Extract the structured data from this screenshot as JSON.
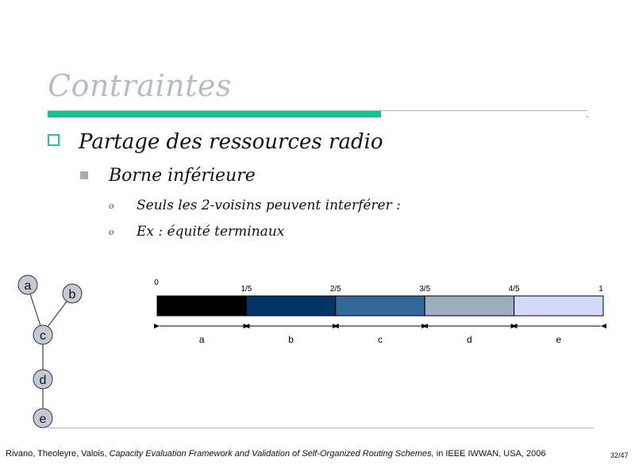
{
  "slide": {
    "title": "Contraintes",
    "bullets": {
      "level1": "Partage des ressources radio",
      "level2": "Borne inférieure",
      "level3_marker": "o",
      "level3_items": [
        "Seuls les 2-voisins peuvent interférer :",
        "Ex : équité terminaux"
      ]
    },
    "colors": {
      "title": "#b5bcc8",
      "accent_green": "#13c28f",
      "rule_gray": "#aeb7c0",
      "node_fill": "#c3cad4"
    }
  },
  "graph": {
    "nodes": [
      "a",
      "b",
      "c",
      "d",
      "e"
    ]
  },
  "bar": {
    "ticks": [
      "0",
      "1/5",
      "2/5",
      "3/5",
      "4/5",
      "1"
    ],
    "segments": [
      {
        "label": "a",
        "share": 0.2,
        "color": "#000000"
      },
      {
        "label": "b",
        "share": 0.2,
        "color": "#003366"
      },
      {
        "label": "c",
        "share": 0.2,
        "color": "#336699"
      },
      {
        "label": "d",
        "share": 0.2,
        "color": "#9fadc1"
      },
      {
        "label": "e",
        "share": 0.2,
        "color": "#d4d9f9"
      }
    ]
  },
  "footer": {
    "authors": "Rivano, Theoleyre, Valois, ",
    "paper_title": "Capacity Evaluation Framework and Validation of Self-Organized Routing Schemes,",
    "venue": " in IEEE IWWAN, USA, 2006",
    "page": "32/47"
  }
}
